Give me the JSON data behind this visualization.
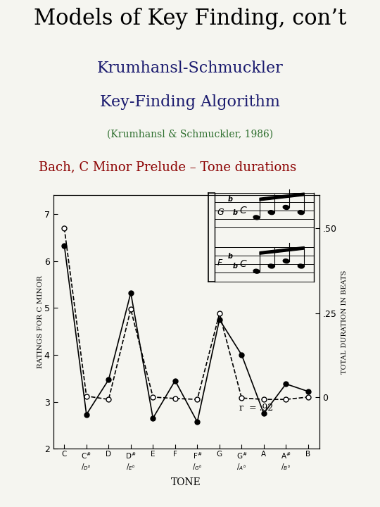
{
  "title": "Models of Key Finding, con’t",
  "subtitle1": "Krumhansl-Schmuckler",
  "subtitle2": "Key-Finding Algorithm",
  "subtitle3": "(Krumhansl & Schmuckler, 1986)",
  "subtitle4": "Bach, C Minor Prelude – Tone durations",
  "title_color": "#000000",
  "subtitle1_color": "#1a1a6e",
  "subtitle2_color": "#1a1a6e",
  "subtitle3_color": "#2d6e2d",
  "subtitle4_color": "#8b0000",
  "xlabel": "TONE",
  "ylabel_left": "RATINGS FOR C MINOR",
  "ylabel_right": "TOTAL DURATION IN BEATS",
  "solid_line_y": [
    6.33,
    2.73,
    3.47,
    5.32,
    2.65,
    3.45,
    2.57,
    4.75,
    4.0,
    2.75,
    3.38,
    3.22
  ],
  "dashed_line_y": [
    6.7,
    3.12,
    3.05,
    4.97,
    3.1,
    3.07,
    3.05,
    4.88,
    3.08,
    3.05,
    3.05,
    3.1
  ],
  "ylim_left": [
    2.0,
    7.4
  ],
  "yticks_left": [
    2,
    3,
    4,
    5,
    6,
    7
  ],
  "yticks_right_labels": [
    ".50",
    ".25",
    "0"
  ],
  "yticks_right_positions": [
    6.7,
    4.88,
    3.1
  ],
  "annotation": "r  = .92",
  "background_color": "#f5f5f0"
}
